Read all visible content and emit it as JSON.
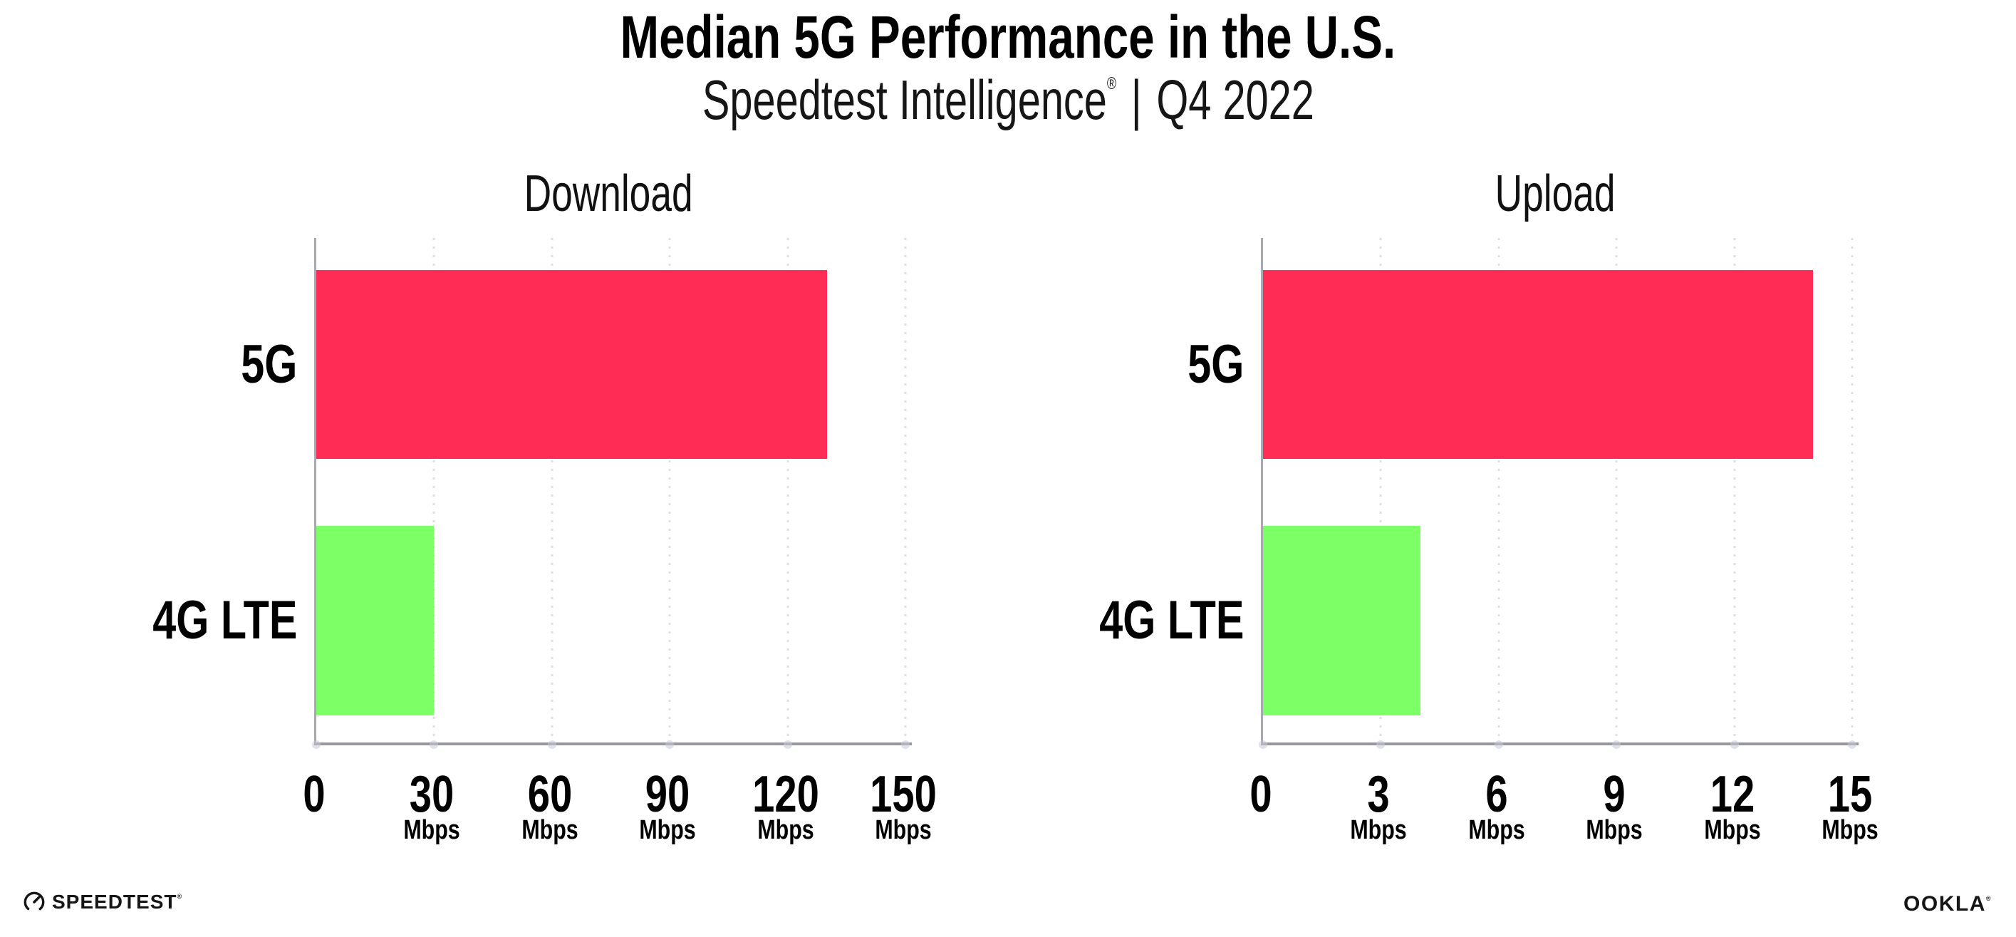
{
  "header": {
    "title": "Median 5G Performance in the U.S.",
    "subtitle": {
      "brand": "Speedtest Intelligence",
      "registered_mark": "®",
      "separator": "|",
      "period": "Q4 2022"
    }
  },
  "chart_data": [
    {
      "type": "bar",
      "orientation": "horizontal",
      "title": "Download",
      "categories": [
        "5G",
        "4G LTE"
      ],
      "values": [
        130,
        30
      ],
      "unit": "Mbps",
      "xlim": [
        0,
        150
      ],
      "xticks": [
        0,
        30,
        60,
        90,
        120,
        150
      ],
      "bar_colors": [
        "#FF2D55",
        "#7DFF66"
      ],
      "legend": "none",
      "grid": "vertical-dotted"
    },
    {
      "type": "bar",
      "orientation": "horizontal",
      "title": "Upload",
      "categories": [
        "5G",
        "4G LTE"
      ],
      "values": [
        14,
        4
      ],
      "unit": "Mbps",
      "xlim": [
        0,
        15
      ],
      "xticks": [
        0,
        3,
        6,
        9,
        12,
        15
      ],
      "bar_colors": [
        "#FF2D55",
        "#7DFF66"
      ],
      "legend": "none",
      "grid": "vertical-dotted"
    }
  ],
  "footer": {
    "speedtest_wordmark": "SPEEDTEST",
    "speedtest_registered": "®",
    "ookla_wordmark": "OOKLA",
    "ookla_registered": "®"
  },
  "colors": {
    "bar_5g": "#FF2D55",
    "bar_4g_lte": "#7DFF66",
    "axis_line": "#97979F",
    "grid_dot": "#DFDFE8",
    "text": "#000000",
    "background": "#FFFFFF"
  }
}
